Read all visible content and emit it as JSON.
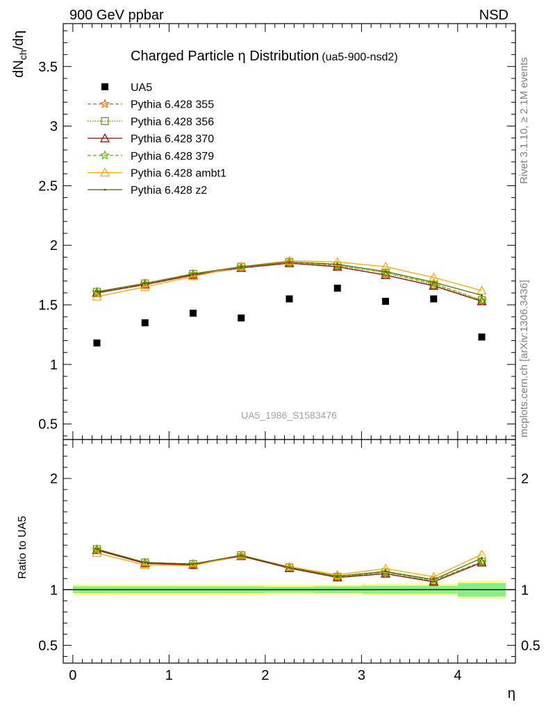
{
  "header": {
    "left": "900 GeV ppbar",
    "right": "NSD"
  },
  "side_labels": {
    "rivet": "Rivet 3.1.10, ≥ 2.1M events",
    "mcplots": "mcplots.cern.ch [arXiv:1306.3436]"
  },
  "chart_data": {
    "type": "scatter",
    "title": "Charged Particle η Distribution",
    "subtitle": "(ua5-900-nsd2)",
    "ylabel": "dN_ch/dη",
    "ylabel_main": "dN",
    "ylabel_sub": "ch",
    "ylabel_tail": "/dη",
    "ratio_ylabel": "Ratio to UA5",
    "xlabel": "η",
    "watermark": "UA5_1986_S1583476",
    "xlim": [
      -0.1,
      4.6
    ],
    "ylim": [
      0.37,
      3.86
    ],
    "ratio_ylim": [
      0.34,
      2.35
    ],
    "x_ticks": [
      "0",
      "1",
      "2",
      "3",
      "4"
    ],
    "y_ticks": [
      "0.5",
      "1",
      "1.5",
      "2",
      "2.5",
      "3",
      "3.5"
    ],
    "ratio_y_ticks": [
      "0.5",
      "1",
      "2"
    ],
    "x": [
      0.25,
      0.75,
      1.25,
      1.75,
      2.25,
      2.75,
      3.25,
      3.75,
      4.25
    ],
    "data": {
      "name": "UA5",
      "values": [
        1.18,
        1.35,
        1.43,
        1.39,
        1.55,
        1.64,
        1.53,
        1.55,
        1.23
      ],
      "ratio_band_inner": [
        0.03,
        0.03,
        0.03,
        0.03,
        0.025,
        0.03,
        0.035,
        0.035,
        0.06
      ],
      "ratio_band_outer": [
        0.05,
        0.05,
        0.05,
        0.05,
        0.045,
        0.045,
        0.055,
        0.055,
        0.08
      ]
    },
    "series": [
      {
        "name": "Pythia 6.428 355",
        "color": "#ff6600",
        "marker": "star",
        "dash": "5,3",
        "values": [
          1.6,
          1.67,
          1.75,
          1.81,
          1.85,
          1.82,
          1.75,
          1.66,
          1.53
        ]
      },
      {
        "name": "Pythia 6.428 356",
        "color": "#6b8e00",
        "marker": "square",
        "dash": "1.5,2",
        "values": [
          1.61,
          1.68,
          1.76,
          1.82,
          1.86,
          1.83,
          1.77,
          1.67,
          1.54
        ]
      },
      {
        "name": "Pythia 6.428 370",
        "color": "#990000",
        "marker": "triangle",
        "dash": "",
        "values": [
          1.6,
          1.67,
          1.75,
          1.81,
          1.85,
          1.82,
          1.75,
          1.66,
          1.53
        ]
      },
      {
        "name": "Pythia 6.428 379",
        "color": "#66bb00",
        "marker": "star",
        "dash": "5,3",
        "values": [
          1.61,
          1.68,
          1.76,
          1.82,
          1.86,
          1.83,
          1.77,
          1.68,
          1.54
        ]
      },
      {
        "name": "Pythia 6.428 ambt1",
        "color": "#ffa500",
        "marker": "triangle",
        "dash": "",
        "values": [
          1.57,
          1.65,
          1.74,
          1.82,
          1.87,
          1.86,
          1.82,
          1.73,
          1.62
        ]
      },
      {
        "name": "Pythia 6.428 z2",
        "color": "#556b00",
        "marker": "dot",
        "dash": "",
        "values": [
          1.61,
          1.68,
          1.76,
          1.82,
          1.86,
          1.84,
          1.78,
          1.69,
          1.58
        ]
      }
    ]
  }
}
